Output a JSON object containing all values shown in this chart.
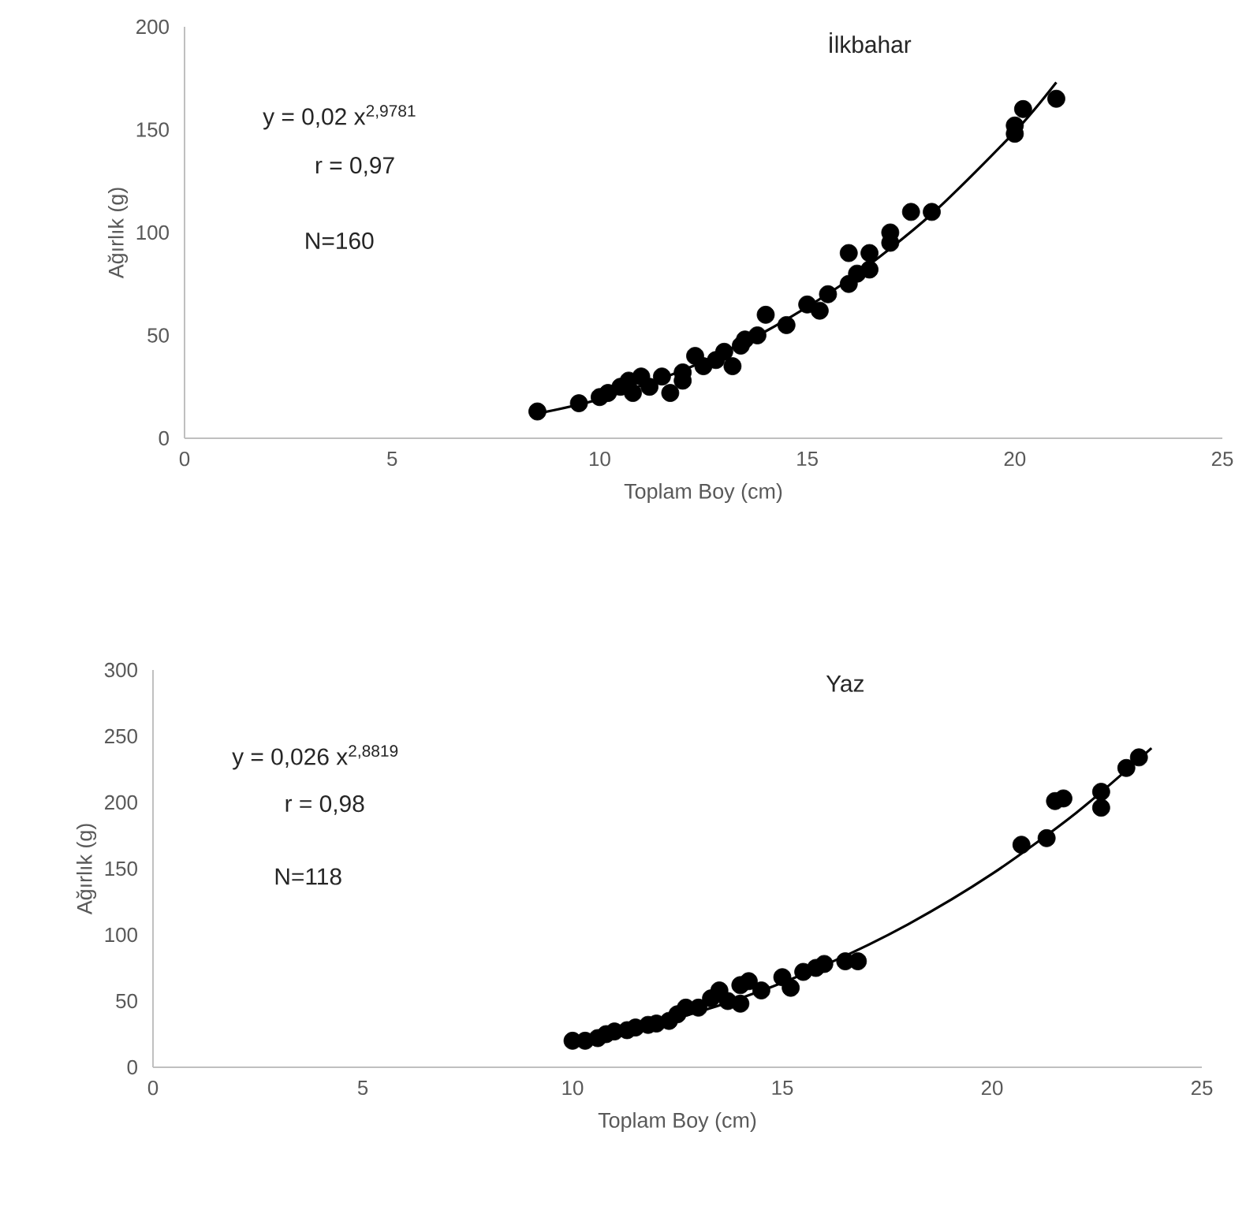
{
  "chart_data": [
    {
      "type": "scatter",
      "title": "İlkbahar",
      "xlabel": "Toplam Boy (cm)",
      "ylabel": "Ağırlık (g)",
      "xlim": [
        0,
        25
      ],
      "xticks": [
        0,
        5,
        10,
        15,
        20,
        25
      ],
      "ylim": [
        0,
        200
      ],
      "yticks": [
        0,
        50,
        100,
        150,
        200
      ],
      "grid": false,
      "annotations": [
        "y = 0,02 x$^{2,9781}$",
        "r = 0,97",
        "N=160"
      ],
      "series": [
        {
          "marker": "circle",
          "color": "#000000",
          "x": [
            8.5,
            9.5,
            10,
            10.2,
            10.5,
            10.7,
            10.8,
            11,
            11.2,
            11.5,
            11.7,
            12,
            12,
            12.3,
            12.5,
            12.8,
            13,
            13.2,
            13.4,
            13.5,
            13.8,
            14,
            14.5,
            15,
            15.3,
            15.5,
            16,
            16,
            16.2,
            16.5,
            16.5,
            17,
            17,
            17.5,
            18,
            20,
            20,
            20.2,
            21
          ],
          "values": [
            13,
            17,
            20,
            22,
            25,
            28,
            22,
            30,
            25,
            30,
            22,
            28,
            32,
            40,
            35,
            38,
            42,
            35,
            45,
            48,
            50,
            60,
            55,
            65,
            62,
            70,
            75,
            90,
            80,
            90,
            82,
            95,
            100,
            110,
            110,
            148,
            152,
            160,
            165
          ]
        },
        {
          "type": "line",
          "marker": "none",
          "color": "#000000",
          "x": [
            8.5,
            10,
            12,
            14,
            16,
            18,
            20,
            21
          ],
          "values": [
            12,
            19,
            33,
            52,
            77,
            109,
            149,
            173
          ]
        }
      ]
    },
    {
      "type": "scatter",
      "title": "Yaz",
      "xlabel": "Toplam Boy (cm)",
      "ylabel": "Ağırlık (g)",
      "xlim": [
        0,
        25
      ],
      "xticks": [
        0,
        5,
        10,
        15,
        20,
        25
      ],
      "ylim": [
        0,
        300
      ],
      "yticks": [
        0,
        50,
        100,
        150,
        200,
        250,
        300
      ],
      "grid": false,
      "annotations": [
        "y = 0,026 x$^{2,8819}$",
        "r = 0,98",
        "N=118"
      ],
      "series": [
        {
          "marker": "circle",
          "color": "#000000",
          "x": [
            10,
            10.3,
            10.6,
            10.8,
            11,
            11.3,
            11.5,
            11.8,
            12,
            12.3,
            12.5,
            12.7,
            13,
            13.3,
            13.5,
            13.7,
            14,
            14,
            14.2,
            14.5,
            15,
            15.2,
            15.5,
            15.8,
            16,
            16.5,
            16.8,
            20.7,
            21.3,
            21.5,
            21.7,
            22.6,
            22.6,
            23.2,
            23.5
          ],
          "values": [
            20,
            20,
            22,
            25,
            27,
            28,
            30,
            32,
            33,
            35,
            40,
            45,
            45,
            52,
            58,
            50,
            48,
            62,
            65,
            58,
            68,
            60,
            72,
            75,
            78,
            80,
            80,
            168,
            173,
            201,
            203,
            208,
            196,
            226,
            234
          ]
        },
        {
          "type": "line",
          "marker": "none",
          "color": "#000000",
          "x": [
            10,
            12,
            14,
            16,
            18,
            20,
            22,
            23.8
          ],
          "values": [
            20,
            33,
            52,
            77,
            108,
            146,
            192,
            241
          ]
        }
      ]
    }
  ]
}
